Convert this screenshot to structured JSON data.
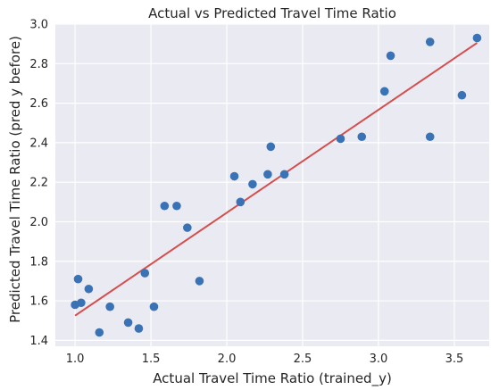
{
  "chart_data": {
    "type": "scatter",
    "title": "Actual vs Predicted Travel Time Ratio",
    "xlabel": "Actual Travel Time Ratio (trained_y)",
    "ylabel": "Predicted Travel Time Ratio (pred y before)",
    "xlim": [
      0.87,
      3.73
    ],
    "ylim": [
      1.37,
      3.0
    ],
    "xticks": [
      "1.0",
      "1.5",
      "2.0",
      "2.5",
      "3.0",
      "3.5"
    ],
    "yticks": [
      "1.4",
      "1.6",
      "1.8",
      "2.0",
      "2.2",
      "2.4",
      "2.6",
      "2.8",
      "3.0"
    ],
    "grid": true,
    "colors": {
      "points": "#3a73b5",
      "fit_line": "#d64d4d",
      "background": "#eaeaf2",
      "grid": "#ffffff"
    },
    "points": [
      {
        "x": 1.0,
        "y": 1.58
      },
      {
        "x": 1.02,
        "y": 1.71
      },
      {
        "x": 1.04,
        "y": 1.59
      },
      {
        "x": 1.09,
        "y": 1.66
      },
      {
        "x": 1.16,
        "y": 1.44
      },
      {
        "x": 1.23,
        "y": 1.57
      },
      {
        "x": 1.35,
        "y": 1.49
      },
      {
        "x": 1.42,
        "y": 1.46
      },
      {
        "x": 1.46,
        "y": 1.74
      },
      {
        "x": 1.52,
        "y": 1.57
      },
      {
        "x": 1.59,
        "y": 2.08
      },
      {
        "x": 1.67,
        "y": 2.08
      },
      {
        "x": 1.74,
        "y": 1.97
      },
      {
        "x": 1.82,
        "y": 1.7
      },
      {
        "x": 2.05,
        "y": 2.23
      },
      {
        "x": 2.09,
        "y": 2.1
      },
      {
        "x": 2.17,
        "y": 2.19
      },
      {
        "x": 2.27,
        "y": 2.24
      },
      {
        "x": 2.29,
        "y": 2.38
      },
      {
        "x": 2.38,
        "y": 2.24
      },
      {
        "x": 2.75,
        "y": 2.42
      },
      {
        "x": 2.89,
        "y": 2.43
      },
      {
        "x": 3.04,
        "y": 2.66
      },
      {
        "x": 3.08,
        "y": 2.84
      },
      {
        "x": 3.34,
        "y": 2.43
      },
      {
        "x": 3.34,
        "y": 2.91
      },
      {
        "x": 3.55,
        "y": 2.64
      },
      {
        "x": 3.65,
        "y": 2.93
      }
    ],
    "fit_line": {
      "x": [
        1.0,
        3.65
      ],
      "y": [
        1.525,
        2.905
      ]
    }
  }
}
